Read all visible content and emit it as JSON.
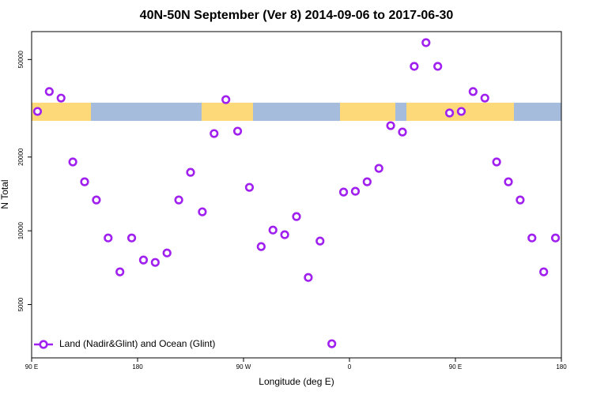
{
  "chart_data": {
    "type": "scatter",
    "title": "40N-50N September (Ver 8)   2014-09-06 to 2017-06-30",
    "x_label": "Longitude (deg E)",
    "y_label": "N Total",
    "yscale": "log",
    "xlim": [
      90,
      540
    ],
    "xticks": [
      {
        "value": 90,
        "label": "90 E"
      },
      {
        "value": 180,
        "label": "180"
      },
      {
        "value": 270,
        "label": "90 W"
      },
      {
        "value": 360,
        "label": "0"
      },
      {
        "value": 450,
        "label": "90 E"
      },
      {
        "value": 540,
        "label": "180"
      }
    ],
    "ylim": [
      3030,
      65000
    ],
    "yticks": [
      5000,
      10000,
      20000,
      50000
    ],
    "legend": "bottom-left",
    "series": [
      {
        "name": "Land (Nadir&Glint) and Ocean (Glint)",
        "color": "#a020f0",
        "x": [
          95,
          105,
          115,
          125,
          135,
          145,
          155,
          165,
          175,
          185,
          195,
          205,
          215,
          225,
          235,
          245,
          255,
          265,
          275,
          285,
          295,
          305,
          315,
          325,
          335,
          345,
          355,
          365,
          375,
          385,
          395,
          405,
          415,
          425,
          435,
          445,
          455,
          465,
          475,
          485,
          495,
          505,
          515,
          525,
          535
        ],
        "values": [
          30700,
          37000,
          34800,
          19100,
          15850,
          13360,
          9350,
          6800,
          9350,
          7600,
          7430,
          8120,
          13360,
          17320,
          11950,
          24940,
          34300,
          25500,
          15040,
          8620,
          10070,
          9640,
          11430,
          6450,
          9080,
          3460,
          14390,
          14500,
          15850,
          17980,
          26860,
          25300,
          46900,
          58600,
          46900,
          30260,
          30700,
          37000,
          34800,
          19100,
          15850,
          13360,
          9350,
          6800,
          9350
        ]
      }
    ]
  }
}
